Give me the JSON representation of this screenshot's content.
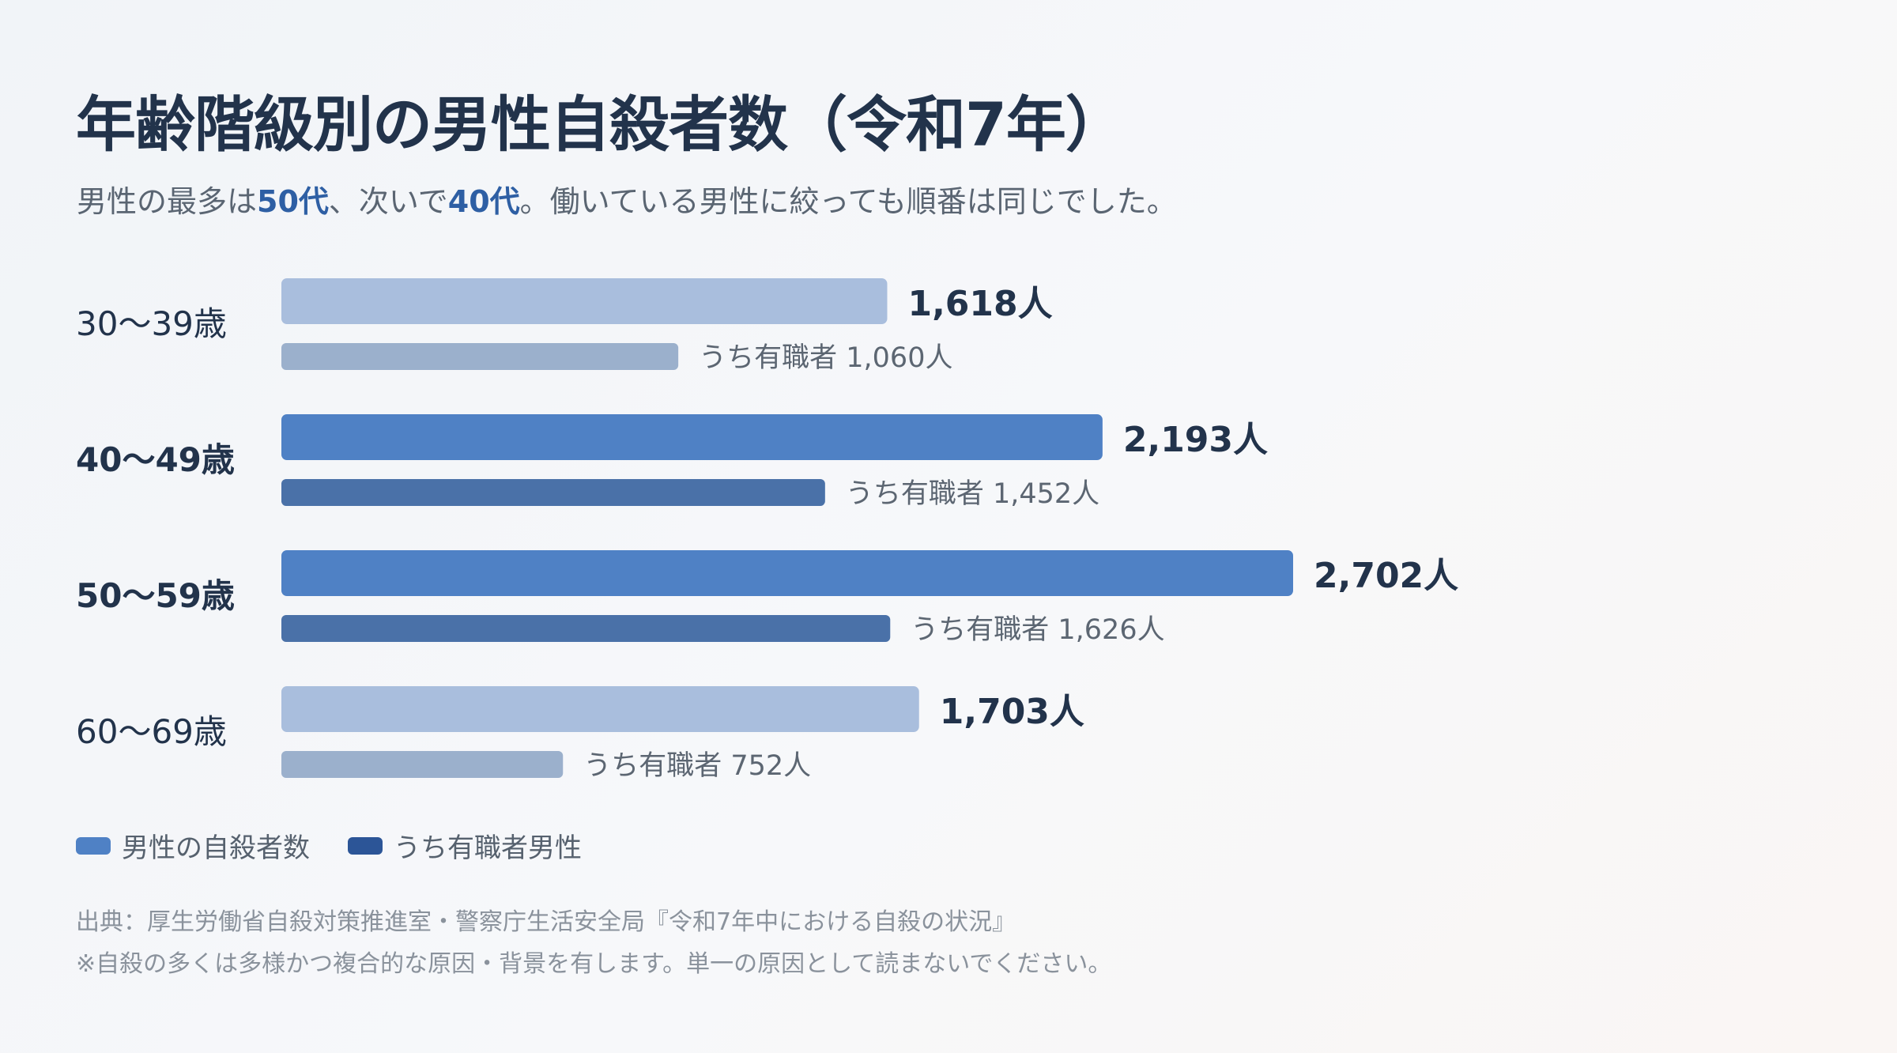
{
  "header": {
    "title": "年齢階級別の男性自殺者数（令和7年）",
    "subtitle_parts": [
      "男性の最多は",
      "50代",
      "、次いで",
      "40代",
      "。働いている男性に絞っても順番は同じでした。"
    ]
  },
  "legend": {
    "total_label": "男性の自殺者数",
    "employed_label": "うち有職者男性"
  },
  "notes": {
    "source": "出典：厚生労働省自殺対策推進室・警察庁生活安全局『令和7年中における自殺の状況』",
    "caution": "※自殺の多くは多様かつ複合的な原因・背景を有します。単一の原因として読まないでください。"
  },
  "colors": {
    "total_highlight": "#4f81c5",
    "employed_highlight": "#4a71a8",
    "total_muted": "#a9bedd",
    "employed_muted": "#9bb0cc",
    "value_text": "#22334b",
    "sub_text": "#5c6672",
    "legend_total": "#4f81c5",
    "legend_employed": "#2c5597"
  },
  "chart_data": {
    "type": "bar",
    "orientation": "horizontal",
    "categories": [
      "30〜39歳",
      "40〜49歳",
      "50〜59歳",
      "60〜69歳"
    ],
    "highlighted": [
      "40〜49歳",
      "50〜59歳"
    ],
    "series": [
      {
        "name": "男性の自殺者数",
        "values": [
          1618,
          2193,
          2702,
          1703
        ],
        "labels": [
          "1,618人",
          "2,193人",
          "2,702人",
          "1,703人"
        ]
      },
      {
        "name": "うち有職者男性",
        "values": [
          1060,
          1452,
          1626,
          752
        ],
        "labels": [
          "うち有職者 1,060人",
          "うち有職者 1,452人",
          "うち有職者 1,626人",
          "うち有職者 752人"
        ]
      }
    ],
    "xlim": [
      0,
      2702
    ],
    "grid": false,
    "legend_position": "bottom-left"
  }
}
